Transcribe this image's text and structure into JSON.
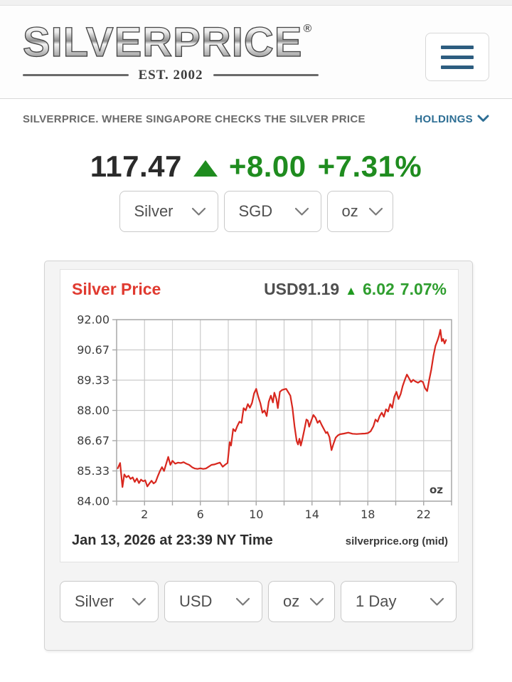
{
  "header": {
    "logo_text": "SILVERPRICE",
    "logo_reg": "®",
    "est": "EST. 2002",
    "menu_icon": "hamburger-icon"
  },
  "tagline": {
    "text": "SILVERPRICE. WHERE SINGAPORE CHECKS THE SILVER PRICE",
    "holdings_label": "HOLDINGS"
  },
  "quote": {
    "price": "117.47",
    "change": "+8.00",
    "change_pct": "+7.31%",
    "up_color": "#1f8c1f",
    "direction": "up"
  },
  "selectors_top": {
    "metal": "Silver",
    "currency": "SGD",
    "unit": "oz"
  },
  "selectors_bottom": {
    "metal": "Silver",
    "currency": "USD",
    "unit": "oz",
    "range": "1 Day"
  },
  "chart_card": {
    "title": "Silver Price",
    "quote_label": "USD91.19",
    "quote_arrow": "▲",
    "quote_change": "6.02",
    "quote_change_pct": "7.07%",
    "unit_label": "oz",
    "caption_left": "Jan 13, 2026 at 23:39 NY Time",
    "caption_right": "silverprice.org (mid)"
  },
  "chart_data": {
    "type": "line",
    "title": "Silver Price (USD per oz, 1 Day)",
    "line_color": "#d8271e",
    "grid_color": "#cacaca",
    "frame_color": "#a6a6a6",
    "tick_text_color": "#3d3d3d",
    "x_range": [
      0,
      24
    ],
    "x_grid_step": 2,
    "x_label_ticks": [
      2,
      6,
      10,
      14,
      18,
      22
    ],
    "y_range": [
      84,
      92
    ],
    "y_tick_labels": [
      "92.00",
      "90.67",
      "89.33",
      "88.00",
      "86.67",
      "85.33",
      "84.00"
    ],
    "grid": true,
    "legend": "none",
    "series": [
      {
        "name": "Silver USD/oz",
        "x": [
          0.08,
          0.25,
          0.42,
          0.55,
          0.7,
          0.85,
          1.0,
          1.15,
          1.3,
          1.45,
          1.6,
          1.75,
          1.9,
          2.05,
          2.2,
          2.35,
          2.5,
          2.65,
          2.8,
          2.95,
          3.1,
          3.25,
          3.4,
          3.55,
          3.7,
          3.85,
          4.0,
          4.2,
          4.4,
          4.6,
          4.8,
          5.0,
          5.2,
          5.4,
          5.6,
          5.8,
          6.0,
          6.2,
          6.4,
          6.6,
          6.8,
          7.0,
          7.2,
          7.4,
          7.6,
          7.8,
          7.95,
          8.1,
          8.2,
          8.35,
          8.5,
          8.65,
          8.8,
          8.95,
          9.1,
          9.25,
          9.4,
          9.55,
          9.7,
          9.85,
          10.0,
          10.15,
          10.3,
          10.45,
          10.6,
          10.75,
          10.9,
          11.05,
          11.2,
          11.3,
          11.45,
          11.55,
          11.7,
          11.85,
          12.0,
          12.15,
          12.3,
          12.45,
          12.6,
          12.75,
          12.9,
          13.0,
          13.1,
          13.2,
          13.3,
          13.45,
          13.6,
          13.7,
          13.8,
          13.95,
          14.1,
          14.25,
          14.4,
          14.55,
          14.7,
          14.85,
          15.0,
          15.1,
          15.25,
          15.4,
          15.55,
          15.7,
          15.85,
          16.0,
          16.3,
          16.6,
          16.9,
          17.2,
          17.5,
          17.8,
          18.0,
          18.2,
          18.4,
          18.55,
          18.7,
          18.85,
          19.0,
          19.15,
          19.3,
          19.45,
          19.6,
          19.75,
          19.9,
          20.05,
          20.2,
          20.35,
          20.5,
          20.65,
          20.8,
          20.95,
          21.1,
          21.25,
          21.4,
          21.6,
          21.8,
          21.95,
          22.1,
          22.25,
          22.4,
          22.55,
          22.7,
          22.85,
          23.0,
          23.1,
          23.2,
          23.3,
          23.4,
          23.5,
          23.6
        ],
        "y": [
          85.45,
          85.68,
          84.62,
          85.18,
          85.05,
          85.12,
          84.98,
          85.05,
          84.85,
          85.0,
          84.8,
          84.95,
          84.88,
          84.92,
          84.65,
          84.78,
          84.9,
          84.78,
          84.85,
          85.1,
          85.32,
          85.5,
          85.33,
          85.65,
          85.95,
          85.6,
          85.78,
          85.65,
          85.7,
          85.68,
          85.72,
          85.65,
          85.6,
          85.5,
          85.44,
          85.42,
          85.45,
          85.42,
          85.44,
          85.52,
          85.6,
          85.62,
          85.66,
          85.7,
          85.52,
          85.62,
          85.68,
          86.6,
          86.45,
          87.18,
          87.08,
          87.32,
          87.5,
          87.45,
          88.1,
          88.0,
          88.28,
          88.12,
          88.33,
          88.75,
          88.95,
          88.6,
          88.32,
          87.9,
          88.0,
          87.75,
          88.38,
          88.65,
          88.35,
          88.78,
          88.5,
          88.1,
          88.82,
          88.9,
          88.93,
          88.95,
          88.8,
          88.65,
          88.1,
          87.3,
          86.65,
          86.5,
          86.75,
          86.45,
          86.7,
          87.15,
          87.6,
          87.55,
          87.28,
          87.55,
          87.8,
          87.68,
          87.45,
          87.55,
          87.35,
          87.18,
          87.0,
          87.05,
          86.82,
          86.25,
          86.55,
          86.8,
          86.9,
          86.95,
          86.98,
          87.02,
          86.97,
          86.96,
          86.97,
          86.98,
          87.0,
          87.08,
          87.3,
          87.6,
          87.5,
          87.75,
          87.9,
          87.72,
          88.05,
          87.95,
          88.28,
          88.12,
          88.6,
          88.82,
          88.5,
          88.72,
          89.08,
          89.35,
          89.58,
          89.42,
          89.25,
          89.35,
          89.28,
          89.22,
          89.3,
          89.25,
          88.98,
          88.85,
          89.35,
          89.8,
          90.4,
          90.85,
          91.1,
          91.28,
          91.55,
          91.05,
          91.15,
          90.95,
          91.1
        ]
      }
    ]
  }
}
